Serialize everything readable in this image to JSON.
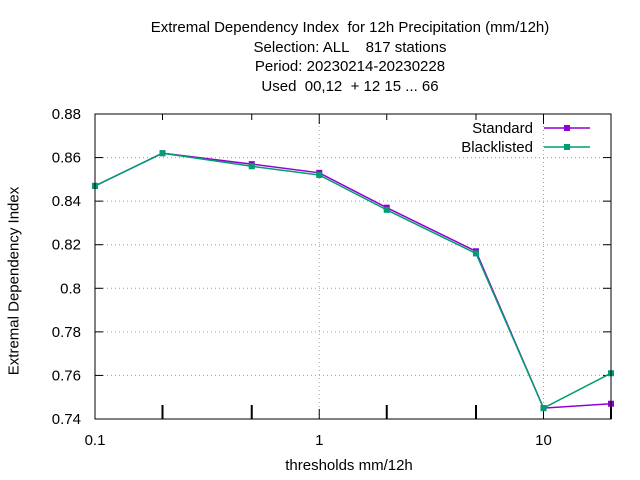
{
  "chart_data": {
    "type": "line",
    "title_lines": [
      "Extremal Dependency Index  for 12h Precipitation (mm/12h)",
      "Selection: ALL    817 stations",
      "Period: 20230214-20230228",
      "Used  00,12  + 12 15 ... 66"
    ],
    "xlabel": "thresholds mm/12h",
    "ylabel": "Extremal Dependency Index",
    "x_scale": "log",
    "xlim": [
      0.1,
      20
    ],
    "ylim": [
      0.74,
      0.88
    ],
    "x_ticks": [
      0.1,
      1,
      10
    ],
    "x_tick_labels": [
      "0.1",
      "1",
      "10"
    ],
    "x_minor_ticks": [
      0.2,
      0.5,
      2,
      5,
      20
    ],
    "y_ticks": [
      0.74,
      0.76,
      0.78,
      0.8,
      0.82,
      0.84,
      0.86,
      0.88
    ],
    "y_tick_labels": [
      "0.74",
      "0.76",
      "0.78",
      "0.8",
      "0.82",
      "0.84",
      "0.86",
      "0.88"
    ],
    "grid": true,
    "legend_position": "top-right",
    "x": [
      0.1,
      0.2,
      0.5,
      1,
      2,
      5,
      10,
      20
    ],
    "series": [
      {
        "name": "Standard",
        "color": "#9400d3",
        "marker": "square",
        "values": [
          0.847,
          0.862,
          0.857,
          0.853,
          0.837,
          0.817,
          0.745,
          0.747
        ]
      },
      {
        "name": "Blacklisted",
        "color": "#009e73",
        "marker": "square",
        "values": [
          0.847,
          0.862,
          0.856,
          0.852,
          0.836,
          0.816,
          0.745,
          0.761
        ]
      }
    ]
  }
}
